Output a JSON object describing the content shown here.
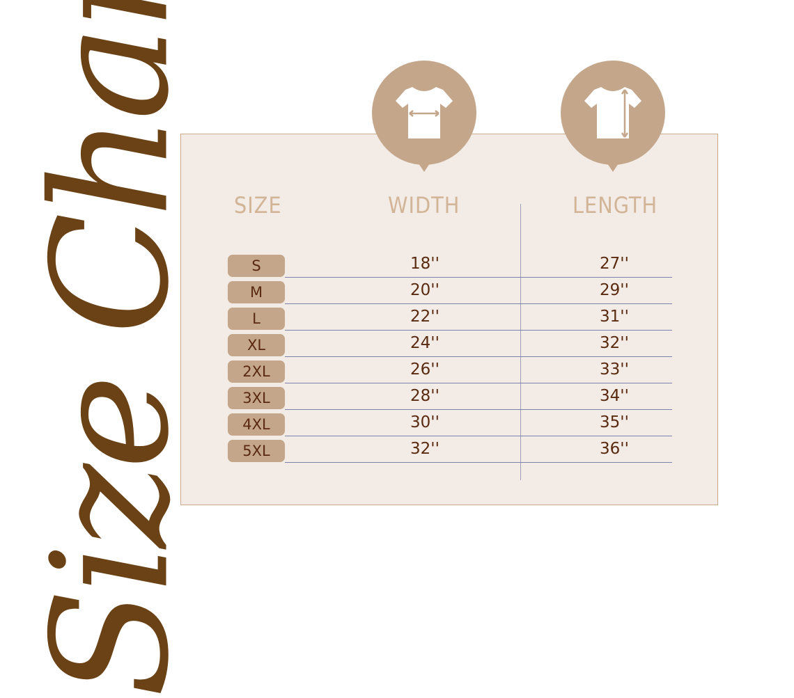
{
  "title": "Size Chart",
  "headers": {
    "size": "SIZE",
    "width": "WIDTH",
    "length": "LENGTH"
  },
  "icons": {
    "width": "tshirt-width-icon",
    "length": "tshirt-length-icon"
  },
  "colors": {
    "title": "#6b4215",
    "accent": "#c4a68b",
    "panel": "#f3ebe5",
    "header": "#d2b497",
    "value": "#5a2a10"
  },
  "rows": [
    {
      "size": "S",
      "width": "18''",
      "length": "27''"
    },
    {
      "size": "M",
      "width": "20''",
      "length": "29''"
    },
    {
      "size": "L",
      "width": "22''",
      "length": "31''"
    },
    {
      "size": "XL",
      "width": "24''",
      "length": "32''"
    },
    {
      "size": "2XL",
      "width": "26''",
      "length": "33''"
    },
    {
      "size": "3XL",
      "width": "28''",
      "length": "34''"
    },
    {
      "size": "4XL",
      "width": "30''",
      "length": "35''"
    },
    {
      "size": "5XL",
      "width": "32''",
      "length": "36''"
    }
  ]
}
